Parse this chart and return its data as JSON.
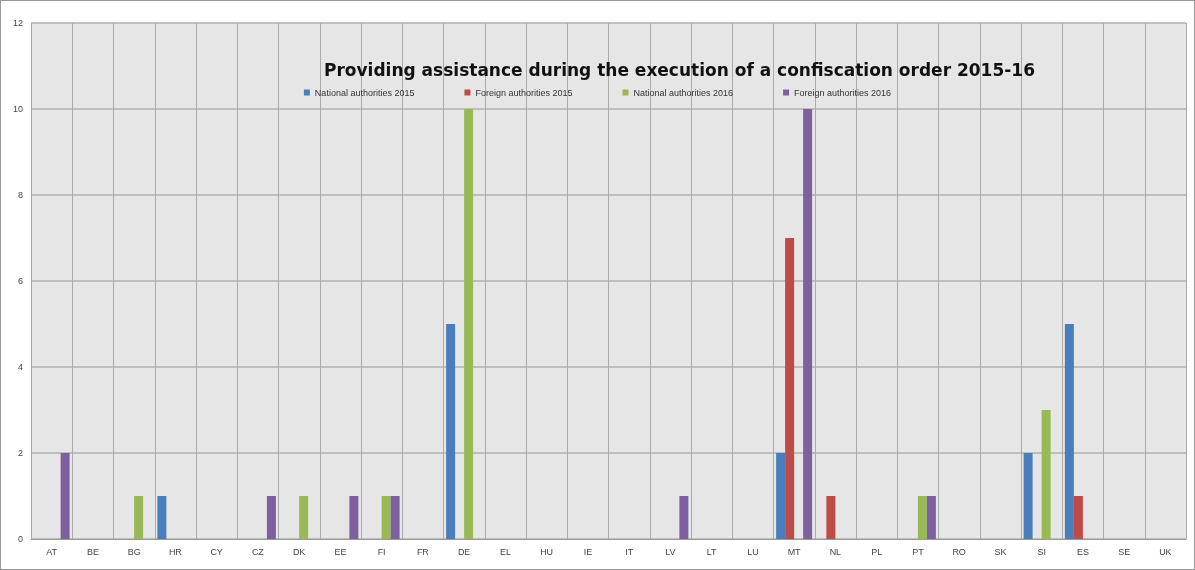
{
  "chart_data": {
    "type": "bar",
    "title": "Providing assistance during the execution of a confiscation order 2015-16",
    "categories": [
      "AT",
      "BE",
      "BG",
      "HR",
      "CY",
      "CZ",
      "DK",
      "EE",
      "FI",
      "FR",
      "DE",
      "EL",
      "HU",
      "IE",
      "IT",
      "LV",
      "LT",
      "LU",
      "MT",
      "NL",
      "PL",
      "PT",
      "RO",
      "SK",
      "SI",
      "ES",
      "SE",
      "UK"
    ],
    "series": [
      {
        "name": "National authorities 2015",
        "color": "#4a7ebb",
        "values": [
          0,
          0,
          0,
          1,
          0,
          0,
          0,
          0,
          0,
          0,
          5,
          0,
          0,
          0,
          0,
          0,
          0,
          0,
          2,
          0,
          0,
          0,
          0,
          0,
          2,
          5,
          0,
          0
        ]
      },
      {
        "name": "Foreign authorities 2015",
        "color": "#be4b48",
        "values": [
          0,
          0,
          0,
          0,
          0,
          0,
          0,
          0,
          0,
          0,
          0,
          0,
          0,
          0,
          0,
          0,
          0,
          0,
          7,
          1,
          0,
          0,
          0,
          0,
          0,
          1,
          0,
          0
        ]
      },
      {
        "name": "National authorities 2016",
        "color": "#98b954",
        "values": [
          0,
          0,
          1,
          0,
          0,
          0,
          1,
          0,
          1,
          0,
          10,
          0,
          0,
          0,
          0,
          0,
          0,
          0,
          0,
          0,
          0,
          1,
          0,
          0,
          3,
          0,
          0,
          0
        ]
      },
      {
        "name": "Foreign authorities 2016",
        "color": "#7d60a0",
        "values": [
          2,
          0,
          0,
          0,
          0,
          1,
          0,
          1,
          1,
          0,
          0,
          0,
          0,
          0,
          0,
          1,
          0,
          0,
          10,
          0,
          0,
          1,
          0,
          0,
          0,
          0,
          0,
          0
        ]
      }
    ],
    "ylim": [
      0,
      12
    ],
    "yticks": [
      0,
      2,
      4,
      6,
      8,
      10,
      12
    ],
    "grid": true,
    "legend": "top"
  }
}
